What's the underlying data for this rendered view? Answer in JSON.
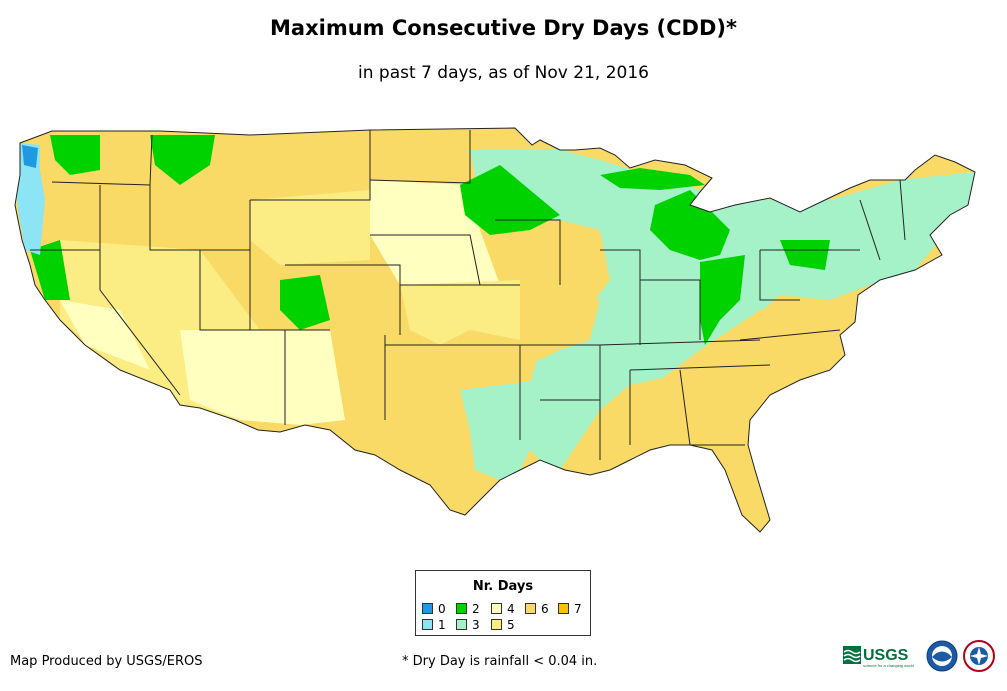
{
  "header": {
    "title": "Maximum Consecutive Dry Days (CDD)*",
    "subtitle": "in past 7 days, as of Nov 21, 2016"
  },
  "legend": {
    "title": "Nr. Days",
    "items": [
      {
        "label": "0",
        "color": "#1f9ae0"
      },
      {
        "label": "1",
        "color": "#8ce4f4"
      },
      {
        "label": "2",
        "color": "#00d200"
      },
      {
        "label": "3",
        "color": "#a6f2c8"
      },
      {
        "label": "4",
        "color": "#ffffc0"
      },
      {
        "label": "5",
        "color": "#fbec84"
      },
      {
        "label": "6",
        "color": "#f9da66"
      },
      {
        "label": "7",
        "color": "#f7c200"
      }
    ]
  },
  "footer": {
    "credit": "Map Produced by USGS/EROS",
    "footnote": "* Dry Day is rainfall < 0.04 in.",
    "usgs_logo_text": "USGS",
    "usgs_tagline": "science for a changing world"
  },
  "colors": {
    "border": "#222222",
    "background": "#ffffff"
  }
}
